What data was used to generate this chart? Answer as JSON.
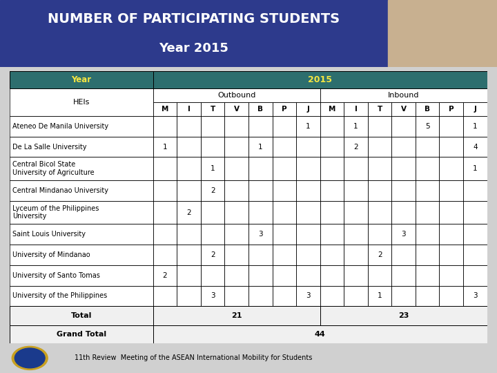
{
  "title_line1": "NUMBER OF PARTICIPATING STUDENTS",
  "title_line2": "Year 2015",
  "header_year": "Year",
  "header_2015": "2015",
  "header_outbound": "Outbound",
  "header_inbound": "Inbound",
  "col_headers": [
    "M",
    "I",
    "T",
    "V",
    "B",
    "P",
    "J",
    "M",
    "I",
    "T",
    "V",
    "B",
    "P",
    "J"
  ],
  "heis": [
    "Ateneo De Manila University",
    "De La Salle University",
    "Central Bicol State\nUniversity of Agriculture",
    "Central Mindanao University",
    "Lyceum of the Philippines\nUniversity",
    "Saint Louis University",
    "University of Mindanao",
    "University of Santo Tomas",
    "University of the Philippines"
  ],
  "data": [
    [
      "",
      "",
      "",
      "",
      "",
      "",
      "1",
      "",
      "1",
      "",
      "",
      "5",
      "",
      "1"
    ],
    [
      "1",
      "",
      "",
      "",
      "1",
      "",
      "",
      "",
      "2",
      "",
      "",
      "",
      "",
      "4"
    ],
    [
      "",
      "",
      "1",
      "",
      "",
      "",
      "",
      "",
      "",
      "",
      "",
      "",
      "",
      "1"
    ],
    [
      "",
      "",
      "2",
      "",
      "",
      "",
      "",
      "",
      "",
      "",
      "",
      "",
      "",
      ""
    ],
    [
      "",
      "2",
      "",
      "",
      "",
      "",
      "",
      "",
      "",
      "",
      "",
      "",
      "",
      ""
    ],
    [
      "",
      "",
      "",
      "",
      "3",
      "",
      "",
      "",
      "",
      "",
      "3",
      "",
      "",
      ""
    ],
    [
      "",
      "",
      "2",
      "",
      "",
      "",
      "",
      "",
      "",
      "2",
      "",
      "",
      "",
      ""
    ],
    [
      "2",
      "",
      "",
      "",
      "",
      "",
      "",
      "",
      "",
      "",
      "",
      "",
      "",
      ""
    ],
    [
      "",
      "",
      "3",
      "",
      "",
      "",
      "3",
      "",
      "",
      "1",
      "",
      "",
      "",
      "3"
    ]
  ],
  "total_outbound": "21",
  "total_inbound": "23",
  "grand_total": "44",
  "footer": "11th Review  Meeting of the ASEAN International Mobility for Students",
  "bg_title": "#2d3a8c",
  "bg_header_year": "#2d6e6e",
  "bg_header_year_text": "#f0e040",
  "bg_header_2015_text": "#f0e040",
  "bg_table": "#ffffff",
  "bg_total_row": "#e8e8e8",
  "border_color": "#000000",
  "text_color": "#000000",
  "header_text_color": "#f5e642"
}
